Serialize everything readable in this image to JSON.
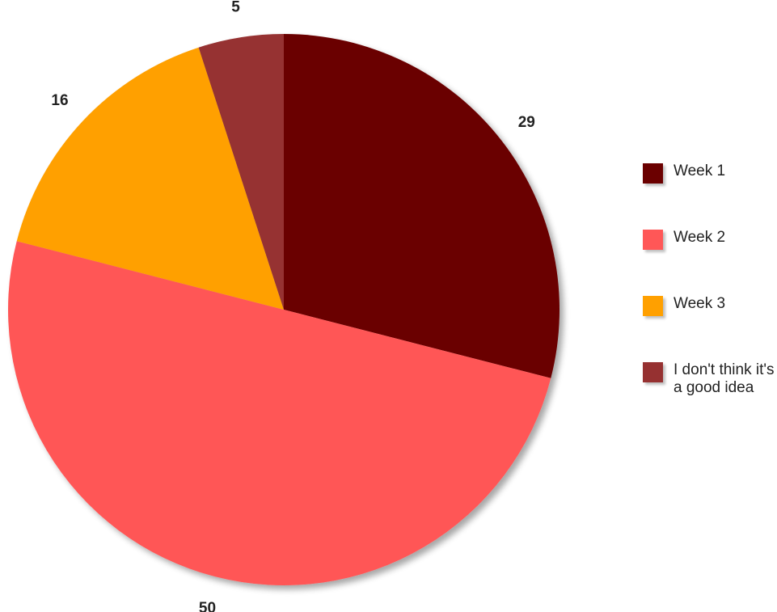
{
  "chart_data": {
    "type": "pie",
    "slices": [
      {
        "name": "Week 1",
        "value": 29,
        "label": "29",
        "color": "#6b0000"
      },
      {
        "name": "Week 2",
        "value": 50,
        "label": "50",
        "color": "#ff5757"
      },
      {
        "name": "Week 3",
        "value": 16,
        "label": "16",
        "color": "#ffa000"
      },
      {
        "name": "I don't think it's a good idea",
        "value": 5,
        "label": "5",
        "color": "#963131"
      }
    ],
    "start_angle": "top",
    "direction": "clockwise",
    "legend_position": "right"
  }
}
